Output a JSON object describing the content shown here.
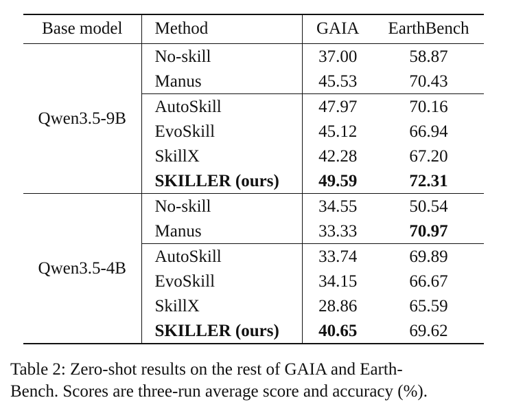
{
  "table": {
    "headers": [
      "Base model",
      "Method",
      "GAIA",
      "EarthBench"
    ],
    "groups": [
      {
        "base_model": "Qwen3.5-9B",
        "rows": [
          {
            "method": "No-skill",
            "gaia": "37.00",
            "earthbench": "58.87"
          },
          {
            "method": "Manus",
            "gaia": "45.53",
            "earthbench": "70.43"
          },
          {
            "method": "AutoSkill",
            "gaia": "47.97",
            "earthbench": "70.16"
          },
          {
            "method": "EvoSkill",
            "gaia": "45.12",
            "earthbench": "66.94"
          },
          {
            "method": "SkillX",
            "gaia": "42.28",
            "earthbench": "67.20"
          },
          {
            "method": "SKILLER (ours)",
            "gaia": "49.59",
            "earthbench": "72.31"
          }
        ]
      },
      {
        "base_model": "Qwen3.5-4B",
        "rows": [
          {
            "method": "No-skill",
            "gaia": "34.55",
            "earthbench": "50.54"
          },
          {
            "method": "Manus",
            "gaia": "33.33",
            "earthbench": "70.97"
          },
          {
            "method": "AutoSkill",
            "gaia": "33.74",
            "earthbench": "69.89"
          },
          {
            "method": "EvoSkill",
            "gaia": "34.15",
            "earthbench": "66.67"
          },
          {
            "method": "SkillX",
            "gaia": "28.86",
            "earthbench": "65.59"
          },
          {
            "method": "SKILLER (ours)",
            "gaia": "40.65",
            "earthbench": "69.62"
          }
        ]
      }
    ]
  },
  "caption": {
    "line1": "Table 2: Zero-shot results on the rest of GAIA and Earth-",
    "line2": "Bench. Scores are three-run average score and accuracy (%)."
  }
}
